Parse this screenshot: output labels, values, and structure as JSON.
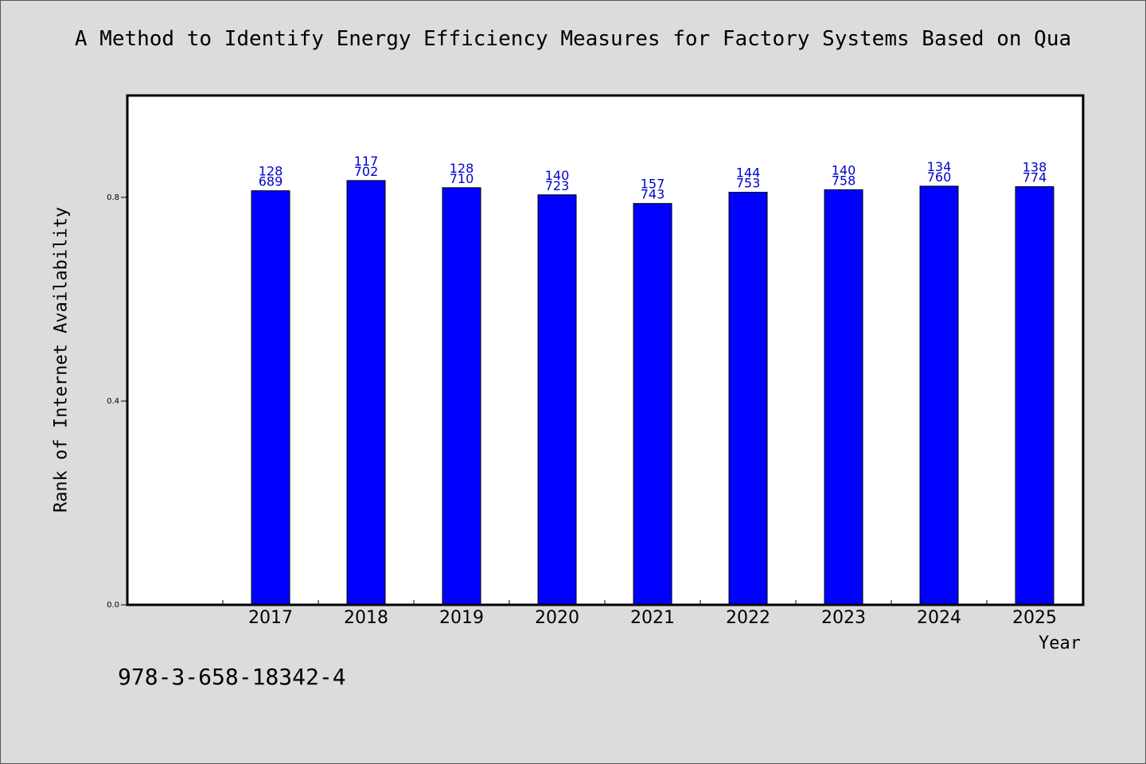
{
  "chart_data": {
    "type": "bar",
    "title": "A Method to Identify Energy Efficiency Measures for Factory Systems Based on Qua",
    "xlabel": "Year",
    "ylabel": "Rank of Internet Availability",
    "categories": [
      "2017",
      "2018",
      "2019",
      "2020",
      "2021",
      "2022",
      "2023",
      "2024",
      "2025"
    ],
    "series": [
      {
        "values": [
          0.813,
          0.833,
          0.819,
          0.805,
          0.788,
          0.81,
          0.815,
          0.822,
          0.821
        ],
        "labels_top": [
          "128",
          "117",
          "128",
          "140",
          "157",
          "144",
          "140",
          "134",
          "138"
        ],
        "labels_bottom": [
          "689",
          "702",
          "710",
          "723",
          "743",
          "753",
          "758",
          "760",
          "774"
        ]
      }
    ],
    "ylim": [
      0,
      1.0
    ],
    "yticks": [
      "0.0",
      "0.4",
      "0.8"
    ],
    "grid": false,
    "colors": {
      "bar": "#0000ff",
      "label": "#0000cc",
      "axis": "#000000"
    }
  },
  "footer": {
    "isbn": "978-3-658-18342-4"
  }
}
